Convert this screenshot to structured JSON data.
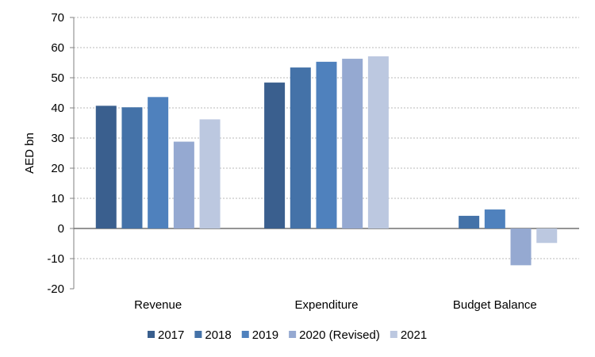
{
  "chart_data": {
    "type": "bar",
    "ylabel": "AED bn",
    "ylim": [
      -20,
      70
    ],
    "yticks": [
      -20,
      -10,
      0,
      10,
      20,
      30,
      40,
      50,
      60,
      70
    ],
    "grid": true,
    "legend_position": "bottom",
    "categories": [
      "Revenue",
      "Expenditure",
      "Budget Balance"
    ],
    "series": [
      {
        "name": "2017",
        "color": "#3A5F8E",
        "values": [
          40.7,
          48.4,
          0
        ]
      },
      {
        "name": "2018",
        "color": "#4472A8",
        "values": [
          40.2,
          53.4,
          4.2
        ]
      },
      {
        "name": "2019",
        "color": "#4F81BD",
        "values": [
          43.6,
          55.3,
          6.3
        ]
      },
      {
        "name": "2020 (Revised)",
        "color": "#95A9D1",
        "values": [
          28.8,
          56.3,
          -12.2
        ]
      },
      {
        "name": "2021",
        "color": "#BCC8E0",
        "values": [
          36.2,
          57.1,
          -4.8
        ]
      }
    ]
  }
}
